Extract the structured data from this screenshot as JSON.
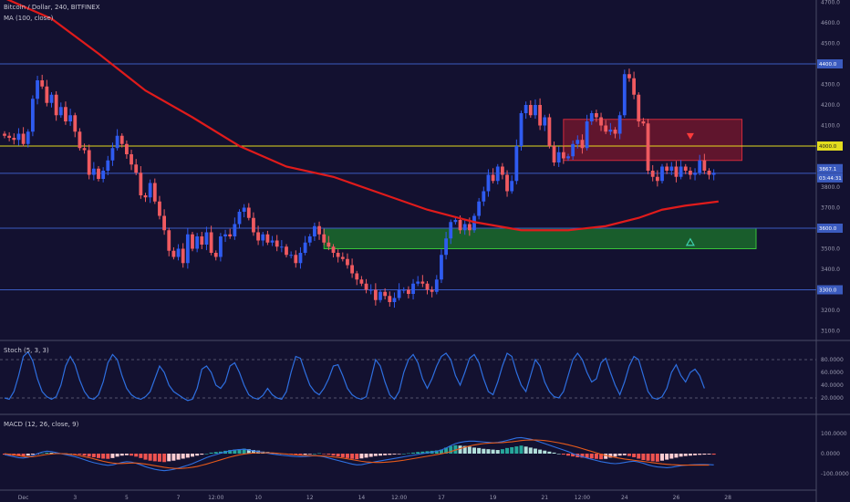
{
  "header": {
    "symbol_line": "Bitcoin / Dollar, 240, BITFINEX",
    "ma_label": "MA (100, close)",
    "stoch_label": "Stoch (5, 3, 3)",
    "macd_label": "MACD (12, 26, close, 9)"
  },
  "price_tags": {
    "level_4400": "4400.0",
    "level_4000": "4000.0",
    "current_top": "3867.1",
    "current_bottom": "03:44:31",
    "level_3600": "3600.0",
    "level_3300": "3300.0"
  },
  "colors": {
    "background": "#131130",
    "up_candle": "#2f5bf0",
    "down_candle": "#ef5a60",
    "ma_line": "#e01b1b",
    "support_zone": "#1f9c2a",
    "resistance_zone": "#a11a2c",
    "horizontal_blue": "#3b5bbf",
    "horizontal_yellow": "#e3dc1e",
    "stoch_line": "#2e6fe0",
    "macd_line": "#2e6fe0",
    "signal_line": "#e65a1a"
  },
  "chart_data": {
    "type": "candlestick",
    "price_axis": {
      "ticks": [
        "4700.0",
        "4600.0",
        "4500.0",
        "4400.0",
        "4300.0",
        "4200.0",
        "4100.0",
        "4000.0",
        "3900.0",
        "3800.0",
        "3700.0",
        "3600.0",
        "3500.0",
        "3400.0",
        "3300.0",
        "3200.0",
        "3100.0"
      ],
      "ylim": [
        3080,
        4720
      ]
    },
    "time_axis": {
      "ticks": [
        {
          "label": "Dec",
          "idx": 4
        },
        {
          "label": "3",
          "idx": 15
        },
        {
          "label": "5",
          "idx": 26
        },
        {
          "label": "7",
          "idx": 37
        },
        {
          "label": "12:00",
          "idx": 45
        },
        {
          "label": "10",
          "idx": 54
        },
        {
          "label": "12",
          "idx": 65
        },
        {
          "label": "14",
          "idx": 76
        },
        {
          "label": "12:00",
          "idx": 84
        },
        {
          "label": "17",
          "idx": 93
        },
        {
          "label": "19",
          "idx": 104
        },
        {
          "label": "21",
          "idx": 115
        },
        {
          "label": "12:00",
          "idx": 123
        },
        {
          "label": "24",
          "idx": 132
        },
        {
          "label": "26",
          "idx": 143
        },
        {
          "label": "28",
          "idx": 154
        }
      ]
    },
    "candles_close": [
      4050,
      4040,
      4030,
      4060,
      4010,
      4070,
      4230,
      4320,
      4290,
      4210,
      4250,
      4150,
      4190,
      4120,
      4150,
      4070,
      3990,
      3980,
      3860,
      3890,
      3840,
      3880,
      3930,
      3990,
      4050,
      4010,
      3960,
      3910,
      3870,
      3760,
      3750,
      3820,
      3730,
      3660,
      3590,
      3490,
      3460,
      3500,
      3430,
      3570,
      3500,
      3560,
      3520,
      3580,
      3480,
      3460,
      3560,
      3570,
      3560,
      3620,
      3680,
      3700,
      3650,
      3580,
      3540,
      3570,
      3530,
      3540,
      3510,
      3510,
      3470,
      3470,
      3430,
      3480,
      3530,
      3560,
      3610,
      3570,
      3530,
      3510,
      3480,
      3460,
      3450,
      3420,
      3380,
      3350,
      3330,
      3300,
      3300,
      3250,
      3290,
      3270,
      3240,
      3260,
      3300,
      3300,
      3280,
      3330,
      3340,
      3330,
      3300,
      3290,
      3350,
      3470,
      3550,
      3630,
      3640,
      3590,
      3620,
      3590,
      3660,
      3730,
      3780,
      3860,
      3830,
      3900,
      3860,
      3780,
      3830,
      4000,
      4160,
      4200,
      4150,
      4200,
      4100,
      4140,
      4000,
      3920,
      3970,
      3940,
      3950,
      4010,
      4030,
      3990,
      4120,
      4160,
      4140,
      4100,
      4070,
      4080,
      4060,
      4150,
      4350,
      4330,
      4250,
      4120,
      4110,
      3880,
      3850,
      3830,
      3900,
      3880,
      3900,
      3850,
      3900,
      3880,
      3860,
      3870,
      3930,
      3880,
      3860,
      3870
    ],
    "ma100": [
      {
        "idx": 0,
        "v": 4720
      },
      {
        "idx": 10,
        "v": 4620
      },
      {
        "idx": 20,
        "v": 4450
      },
      {
        "idx": 30,
        "v": 4270
      },
      {
        "idx": 40,
        "v": 4140
      },
      {
        "idx": 50,
        "v": 4000
      },
      {
        "idx": 60,
        "v": 3900
      },
      {
        "idx": 70,
        "v": 3850
      },
      {
        "idx": 80,
        "v": 3770
      },
      {
        "idx": 90,
        "v": 3690
      },
      {
        "idx": 100,
        "v": 3630
      },
      {
        "idx": 110,
        "v": 3590
      },
      {
        "idx": 120,
        "v": 3590
      },
      {
        "idx": 128,
        "v": 3610
      },
      {
        "idx": 135,
        "v": 3650
      },
      {
        "idx": 140,
        "v": 3690
      },
      {
        "idx": 145,
        "v": 3710
      },
      {
        "idx": 152,
        "v": 3730
      }
    ],
    "horizontal_levels": [
      {
        "value": 4400,
        "color": "horizontal_blue"
      },
      {
        "value": 4000,
        "color": "horizontal_yellow"
      },
      {
        "value": 3867,
        "color": "horizontal_blue"
      },
      {
        "value": 3600,
        "color": "horizontal_blue"
      },
      {
        "value": 3300,
        "color": "horizontal_blue"
      }
    ],
    "zones": [
      {
        "kind": "resistance",
        "from_idx": 119,
        "to_idx": 157,
        "low": 3930,
        "high": 4130
      },
      {
        "kind": "support",
        "from_idx": 68,
        "to_idx": 160,
        "low": 3500,
        "high": 3600
      }
    ],
    "arrows": [
      {
        "kind": "down",
        "idx": 146,
        "value": 4045
      },
      {
        "kind": "up",
        "idx": 146,
        "value": 3530
      }
    ],
    "stoch": {
      "ylim": [
        0,
        100
      ],
      "ticks": [
        "80.0000",
        "60.0000",
        "40.0000",
        "20.0000"
      ],
      "levels": [
        80,
        20
      ],
      "values": [
        20,
        18,
        30,
        55,
        85,
        92,
        78,
        50,
        30,
        22,
        18,
        22,
        40,
        70,
        85,
        72,
        48,
        30,
        20,
        18,
        25,
        45,
        75,
        88,
        80,
        55,
        35,
        25,
        20,
        18,
        22,
        30,
        50,
        70,
        60,
        40,
        30,
        25,
        20,
        16,
        18,
        35,
        65,
        70,
        60,
        40,
        35,
        45,
        70,
        75,
        60,
        40,
        25,
        20,
        18,
        24,
        35,
        25,
        20,
        18,
        30,
        60,
        85,
        82,
        60,
        40,
        30,
        25,
        35,
        50,
        70,
        72,
        55,
        35,
        25,
        20,
        18,
        22,
        50,
        80,
        70,
        45,
        25,
        18,
        30,
        60,
        80,
        88,
        75,
        50,
        35,
        50,
        70,
        85,
        90,
        80,
        55,
        40,
        60,
        82,
        88,
        75,
        50,
        30,
        25,
        45,
        70,
        90,
        85,
        60,
        40,
        30,
        55,
        80,
        70,
        45,
        30,
        22,
        20,
        30,
        55,
        80,
        90,
        80,
        60,
        45,
        50,
        75,
        82,
        60,
        40,
        25,
        45,
        70,
        85,
        80,
        55,
        30,
        20,
        18,
        22,
        35,
        60,
        72,
        55,
        45,
        60,
        65,
        55,
        35
      ]
    },
    "macd": {
      "ylim": [
        -160,
        160
      ],
      "ticks": [
        "100.0000",
        "0.0000",
        "-100.0000"
      ],
      "histogram": [
        -5,
        -8,
        -10,
        -12,
        -14,
        -10,
        -5,
        -2,
        2,
        5,
        4,
        3,
        2,
        1,
        0,
        -2,
        -5,
        -10,
        -15,
        -18,
        -22,
        -25,
        -26,
        -22,
        -15,
        -10,
        -8,
        -10,
        -15,
        -22,
        -30,
        -35,
        -38,
        -40,
        -42,
        -38,
        -35,
        -30,
        -25,
        -20,
        -15,
        -10,
        -5,
        0,
        5,
        8,
        10,
        14,
        18,
        20,
        22,
        25,
        22,
        18,
        15,
        10,
        8,
        5,
        2,
        0,
        -2,
        -3,
        -5,
        -6,
        -5,
        -3,
        0,
        2,
        -2,
        -5,
        -10,
        -14,
        -18,
        -22,
        -26,
        -28,
        -24,
        -20,
        -16,
        -12,
        -10,
        -8,
        -6,
        -4,
        -2,
        0,
        2,
        5,
        8,
        10,
        12,
        14,
        16,
        20,
        30,
        38,
        42,
        40,
        38,
        35,
        30,
        28,
        24,
        22,
        20,
        18,
        22,
        28,
        32,
        36,
        40,
        35,
        30,
        25,
        20,
        15,
        10,
        5,
        0,
        -5,
        -10,
        -14,
        -18,
        -20,
        -22,
        -24,
        -26,
        -28,
        -26,
        -20,
        -15,
        -10,
        -8,
        -12,
        -18,
        -25,
        -32,
        -35,
        -38,
        -40,
        -35,
        -30,
        -25,
        -20,
        -15,
        -12,
        -10,
        -8,
        -6,
        -5,
        -4,
        -5
      ],
      "macd_line": [
        -5,
        -10,
        -15,
        -20,
        -22,
        -18,
        -10,
        0,
        8,
        12,
        10,
        5,
        0,
        -5,
        -10,
        -15,
        -22,
        -30,
        -38,
        -45,
        -50,
        -55,
        -58,
        -56,
        -50,
        -44,
        -40,
        -42,
        -48,
        -56,
        -65,
        -72,
        -78,
        -82,
        -85,
        -82,
        -78,
        -72,
        -65,
        -58,
        -50,
        -40,
        -30,
        -20,
        -12,
        -5,
        2,
        8,
        14,
        18,
        20,
        22,
        18,
        14,
        10,
        6,
        2,
        -2,
        -5,
        -8,
        -10,
        -12,
        -14,
        -15,
        -14,
        -12,
        -10,
        -12,
        -16,
        -22,
        -28,
        -34,
        -40,
        -46,
        -52,
        -56,
        -55,
        -50,
        -45,
        -40,
        -36,
        -32,
        -28,
        -24,
        -20,
        -16,
        -12,
        -8,
        -4,
        0,
        4,
        8,
        12,
        18,
        28,
        40,
        50,
        56,
        60,
        62,
        62,
        60,
        58,
        56,
        54,
        56,
        60,
        66,
        72,
        78,
        80,
        76,
        72,
        66,
        58,
        50,
        42,
        34,
        26,
        18,
        10,
        0,
        -8,
        -15,
        -22,
        -28,
        -34,
        -40,
        -44,
        -48,
        -50,
        -48,
        -44,
        -40,
        -38,
        -42,
        -48,
        -56,
        -62,
        -66,
        -68,
        -70,
        -68,
        -64,
        -60,
        -58,
        -56,
        -55,
        -54,
        -54,
        -55,
        -56
      ],
      "signal_line": [
        0,
        -3,
        -6,
        -10,
        -14,
        -16,
        -15,
        -12,
        -8,
        -4,
        -2,
        0,
        0,
        -1,
        -3,
        -6,
        -10,
        -15,
        -20,
        -26,
        -32,
        -38,
        -43,
        -47,
        -49,
        -49,
        -48,
        -47,
        -47,
        -49,
        -52,
        -56,
        -60,
        -64,
        -68,
        -71,
        -73,
        -74,
        -73,
        -71,
        -68,
        -64,
        -58,
        -52,
        -45,
        -38,
        -31,
        -24,
        -17,
        -11,
        -6,
        -2,
        1,
        3,
        4,
        4,
        4,
        3,
        2,
        0,
        -2,
        -4,
        -6,
        -8,
        -9,
        -10,
        -10,
        -11,
        -12,
        -14,
        -16,
        -19,
        -22,
        -26,
        -30,
        -34,
        -38,
        -41,
        -43,
        -44,
        -44,
        -43,
        -41,
        -39,
        -36,
        -33,
        -29,
        -25,
        -21,
        -17,
        -13,
        -9,
        -5,
        -1,
        4,
        10,
        18,
        25,
        32,
        38,
        43,
        47,
        50,
        52,
        53,
        54,
        55,
        57,
        59,
        62,
        65,
        67,
        68,
        68,
        67,
        65,
        62,
        58,
        54,
        49,
        44,
        38,
        32,
        25,
        18,
        11,
        4,
        -3,
        -9,
        -14,
        -19,
        -23,
        -27,
        -30,
        -33,
        -36,
        -39,
        -42,
        -45,
        -48,
        -51,
        -53,
        -55,
        -56,
        -57,
        -57,
        -57,
        -57,
        -57,
        -57,
        -57
      ]
    }
  }
}
